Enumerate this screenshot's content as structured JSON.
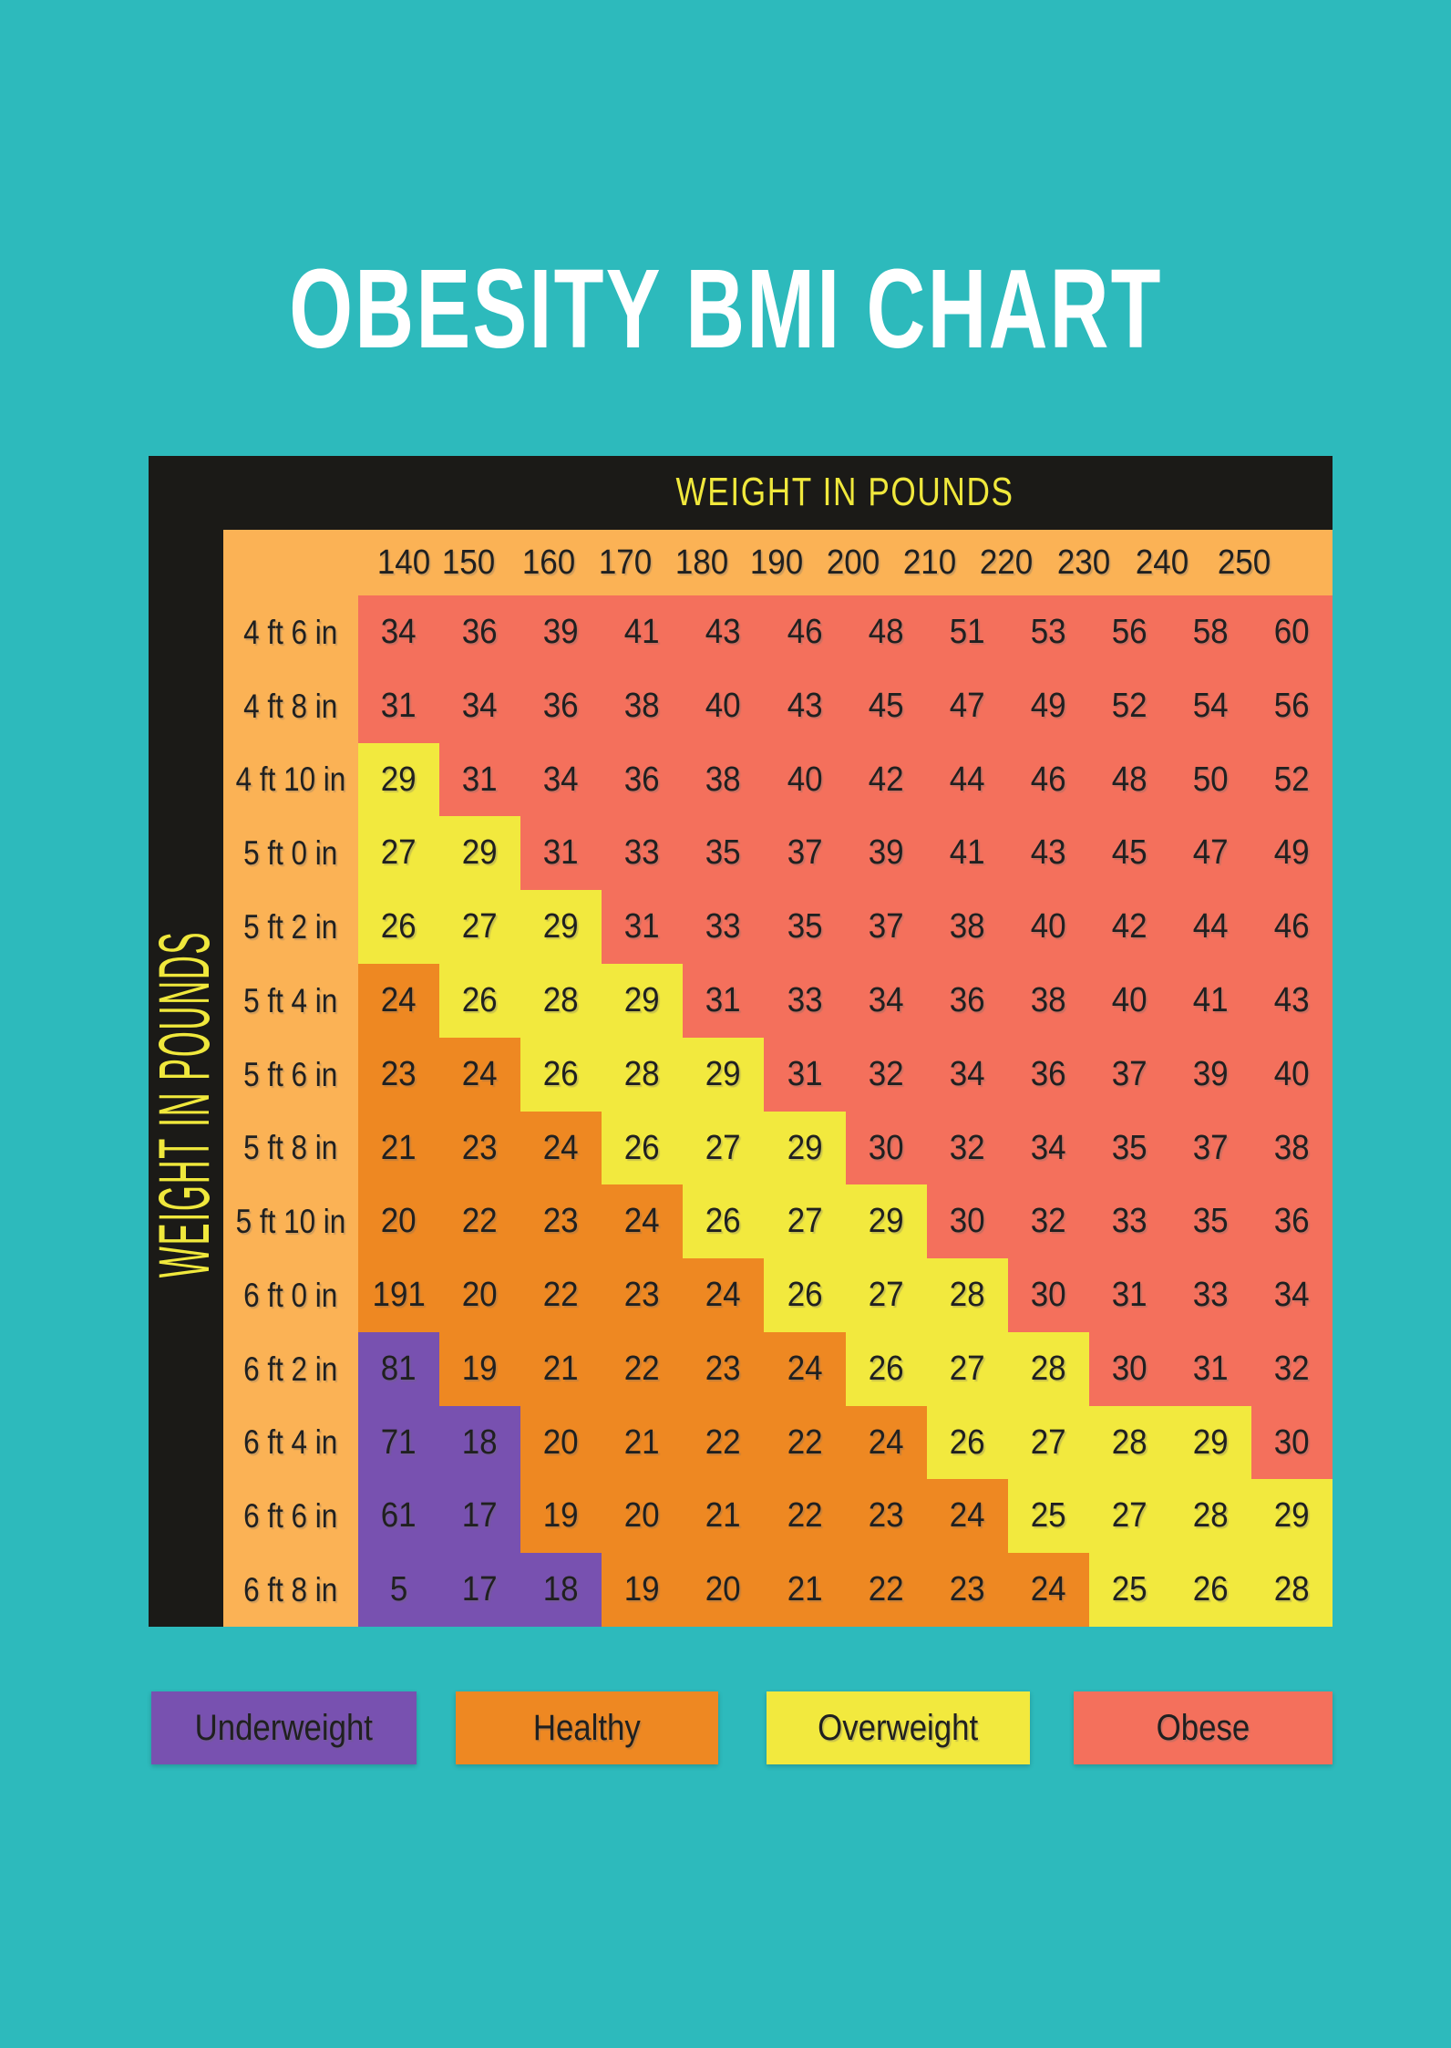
{
  "title": "OBESITY BMI CHART",
  "chart_data": {
    "type": "heatmap",
    "title": "OBESITY BMI CHART",
    "x_axis_label": "WEIGHT IN POUNDS",
    "y_axis_label": "WEIGHT IN POUNDS",
    "x_labels": [
      "140",
      "150",
      "160",
      "170",
      "180",
      "190",
      "200",
      "210",
      "220",
      "230",
      "240",
      "250"
    ],
    "y_labels": [
      "4 ft 6 in",
      "4 ft 8 in",
      "4 ft 10 in",
      "5 ft 0 in",
      "5 ft 2 in",
      "5 ft 4 in",
      "5 ft 6 in",
      "5 ft 8 in",
      "5 ft 10 in",
      "6 ft 0 in",
      "6 ft 2 in",
      "6 ft 4 in",
      "6 ft 6 in",
      "6 ft 8 in"
    ],
    "values": [
      [
        34,
        36,
        39,
        41,
        43,
        46,
        48,
        51,
        53,
        56,
        58,
        60
      ],
      [
        31,
        34,
        36,
        38,
        40,
        43,
        45,
        47,
        49,
        52,
        54,
        56
      ],
      [
        29,
        31,
        34,
        36,
        38,
        40,
        42,
        44,
        46,
        48,
        50,
        52
      ],
      [
        27,
        29,
        31,
        33,
        35,
        37,
        39,
        41,
        43,
        45,
        47,
        49
      ],
      [
        26,
        27,
        29,
        31,
        33,
        35,
        37,
        38,
        40,
        42,
        44,
        46
      ],
      [
        24,
        26,
        28,
        29,
        31,
        33,
        34,
        36,
        38,
        40,
        41,
        43
      ],
      [
        23,
        24,
        26,
        28,
        29,
        31,
        32,
        34,
        36,
        37,
        39,
        40
      ],
      [
        21,
        23,
        24,
        26,
        27,
        29,
        30,
        32,
        34,
        35,
        37,
        38
      ],
      [
        20,
        22,
        23,
        24,
        26,
        27,
        29,
        30,
        32,
        33,
        35,
        36
      ],
      [
        191,
        20,
        22,
        23,
        24,
        26,
        27,
        28,
        30,
        31,
        33,
        34
      ],
      [
        81,
        19,
        21,
        22,
        23,
        24,
        26,
        27,
        28,
        30,
        31,
        32
      ],
      [
        71,
        18,
        20,
        21,
        22,
        22,
        24,
        26,
        27,
        28,
        29,
        30
      ],
      [
        61,
        17,
        19,
        20,
        21,
        22,
        23,
        24,
        25,
        27,
        28,
        29
      ],
      [
        5,
        17,
        18,
        19,
        20,
        21,
        22,
        23,
        24,
        25,
        26,
        28
      ]
    ],
    "cell_categories": [
      "SSSSSSSSSSSS",
      "SSSSSSSSSSSS",
      "WSSSSSSSSSSS",
      "WWSSSSSSSSSS",
      "WWWSSSSSSSSS",
      "HWWWSSSSSSSS",
      "HHWWWSSSSSSS",
      "HHHWWWSSSSSS",
      "HHHHWWWSSSSS",
      "HHHHHWWWSSSS",
      "UHHHHHWWWSSS",
      "UUHHHHHWWWWS",
      "UUHHHHHHWWWW",
      "UUUHHHHHHWWW"
    ],
    "category_key": {
      "U": "underweight",
      "H": "healthy",
      "W": "overweight",
      "S": "obese"
    },
    "legend": [
      {
        "label": "Underweight",
        "category": "U"
      },
      {
        "label": "Healthy",
        "category": "H"
      },
      {
        "label": "Overweight",
        "category": "W"
      },
      {
        "label": "Obese",
        "category": "S"
      }
    ]
  },
  "colors": {
    "background": "#2DBABC",
    "frame": "#1B1A17",
    "band": "#FBB255",
    "underweight": "#7851B0",
    "healthy": "#EE8822",
    "overweight": "#F2E93E",
    "obese": "#F4705C",
    "cell_text": "#202020",
    "axis_text": "#F0E83C",
    "title_text": "#FFFFFF"
  }
}
